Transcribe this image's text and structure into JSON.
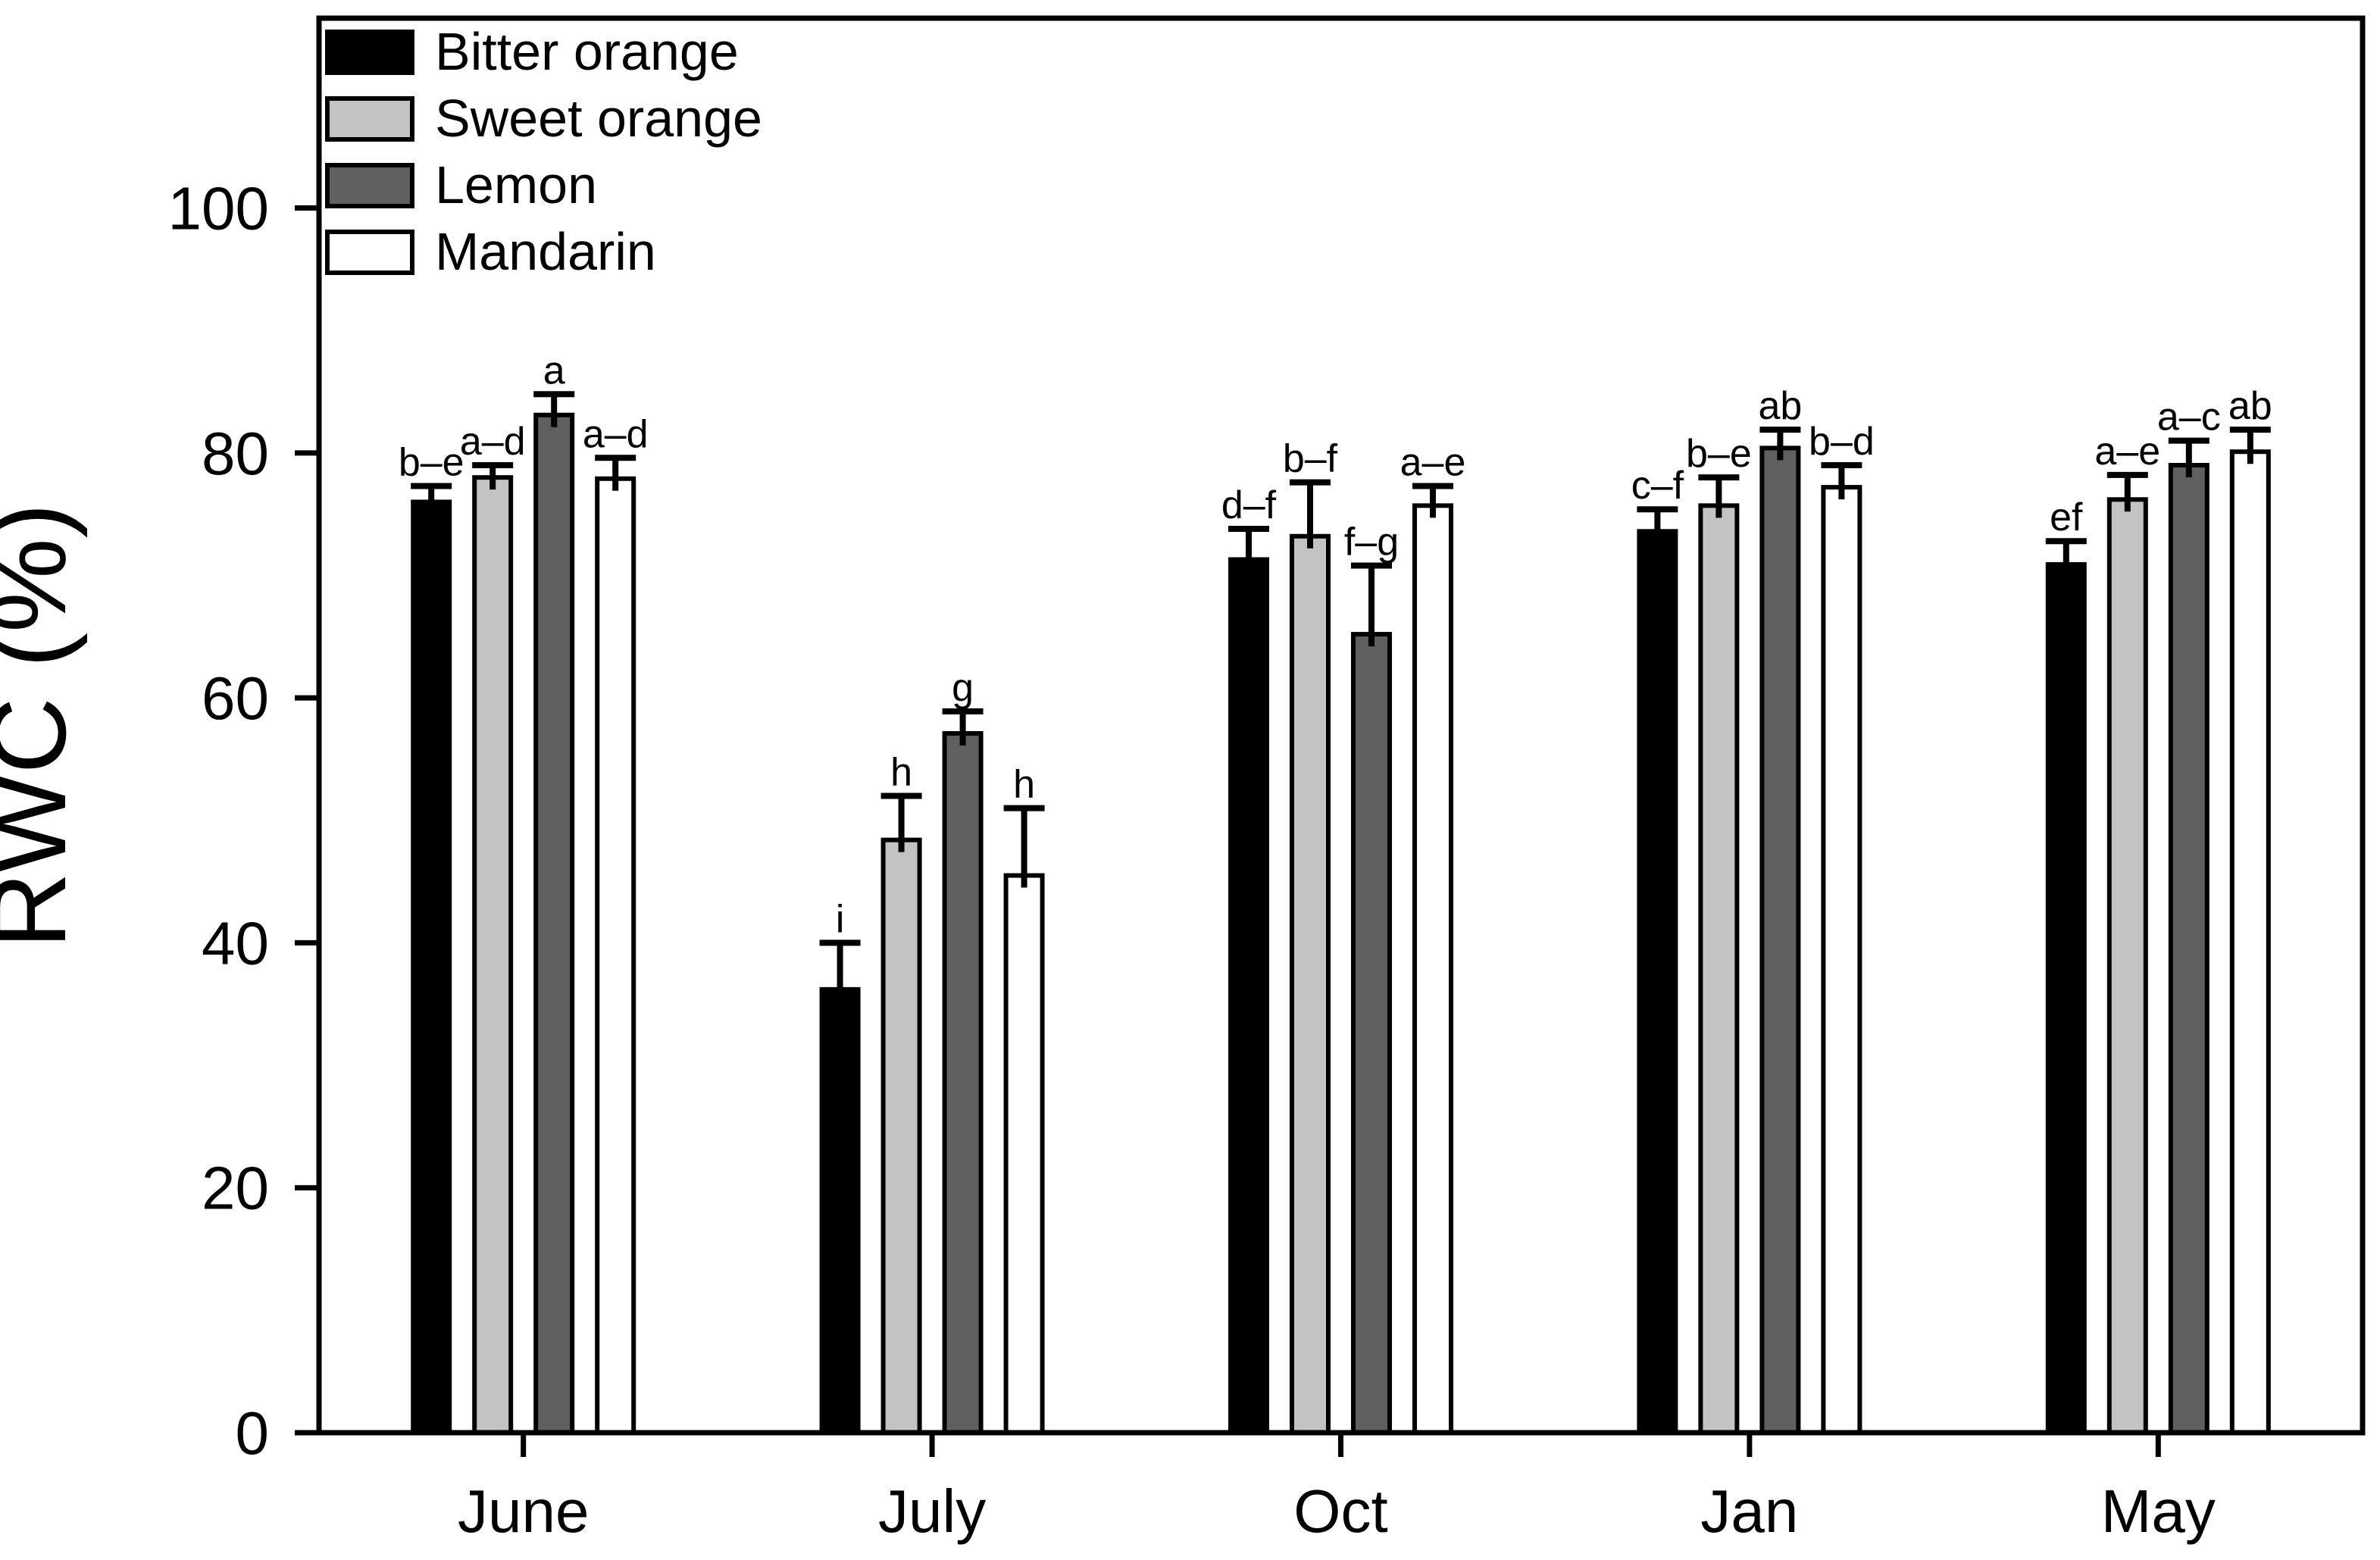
{
  "figure": {
    "description": "Grouped bar chart of leaf relative water content by month for four citrus rootstock species, with upper error bars and significance letters"
  },
  "chart_data": {
    "type": "bar",
    "title": "",
    "xlabel": "",
    "ylabel": "RWC (%)",
    "categories": [
      "June",
      "July",
      "Oct",
      "Jan",
      "May"
    ],
    "yticks": [
      0,
      20,
      40,
      60,
      80,
      100
    ],
    "ylim": [
      0,
      115.5
    ],
    "grid": false,
    "legend_position": "top-left-inside",
    "error_bars": "upper-only-with-cap",
    "series": [
      {
        "name": "Bitter orange",
        "fill": "#000000",
        "values": [
          76.0,
          36.2,
          71.3,
          73.6,
          70.9
        ],
        "errors": [
          1.3,
          3.8,
          2.5,
          1.8,
          1.9
        ],
        "letters": [
          "b–e",
          "i",
          "d–f",
          "c–f",
          "ef"
        ]
      },
      {
        "name": "Sweet orange",
        "fill": "#c3c3c3",
        "values": [
          78.0,
          48.4,
          73.2,
          75.7,
          76.2
        ],
        "errors": [
          1.0,
          3.6,
          4.4,
          2.3,
          2.0
        ],
        "letters": [
          "a–d",
          "h",
          "b–f",
          "b–e",
          "a–e"
        ]
      },
      {
        "name": "Lemon",
        "fill": "#5f5f5f",
        "values": [
          83.1,
          57.1,
          65.2,
          80.4,
          79.0
        ],
        "errors": [
          1.7,
          1.8,
          5.6,
          1.5,
          2.0
        ],
        "letters": [
          "a",
          "g",
          "f–g",
          "ab",
          "a–c"
        ]
      },
      {
        "name": "Mandarin",
        "fill": "#ffffff",
        "values": [
          77.9,
          45.5,
          75.7,
          77.2,
          80.1
        ],
        "errors": [
          1.7,
          5.5,
          1.6,
          1.8,
          1.8
        ],
        "letters": [
          "a–d",
          "h",
          "a–e",
          "b–d",
          "ab"
        ]
      }
    ],
    "colors": {
      "axis": "#000000",
      "text": "#000000",
      "background": "#ffffff"
    }
  }
}
